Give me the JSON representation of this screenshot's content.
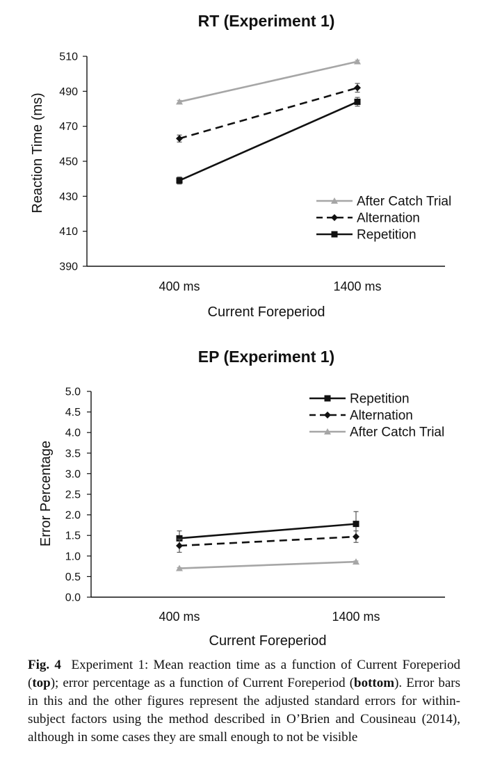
{
  "chart_data": [
    {
      "type": "line",
      "title": "RT (Experiment 1)",
      "xlabel": "Current Foreperiod",
      "ylabel": "Reaction Time (ms)",
      "categories": [
        "400 ms",
        "1400 ms"
      ],
      "ylim": [
        390,
        510
      ],
      "yticks": [
        "390",
        "410",
        "430",
        "450",
        "470",
        "490",
        "510"
      ],
      "legend_position": "bottom-right",
      "series": [
        {
          "name": "After Catch Trial",
          "values": [
            484,
            507
          ],
          "errors": [
            0.8,
            0.8
          ],
          "color": "#a6a6a6",
          "dash": "solid",
          "marker": "triangle"
        },
        {
          "name": "Alternation",
          "values": [
            463,
            492
          ],
          "errors": [
            2,
            2.5
          ],
          "color": "#111111",
          "dash": "dashed",
          "marker": "diamond"
        },
        {
          "name": "Repetition",
          "values": [
            439,
            484
          ],
          "errors": [
            2,
            2.5
          ],
          "color": "#111111",
          "dash": "solid",
          "marker": "square"
        }
      ]
    },
    {
      "type": "line",
      "title": "EP (Experiment 1)",
      "xlabel": "Current Foreperiod",
      "ylabel": "Error Percentage",
      "categories": [
        "400 ms",
        "1400 ms"
      ],
      "ylim": [
        0,
        5
      ],
      "yticks": [
        "0.0",
        "0.5",
        "1.0",
        "1.5",
        "2.0",
        "2.5",
        "3.0",
        "3.5",
        "4.0",
        "4.5",
        "5.0"
      ],
      "legend_position": "top-right",
      "series": [
        {
          "name": "Repetition",
          "values": [
            1.43,
            1.78
          ],
          "errors": [
            0.18,
            0.3
          ],
          "color": "#111111",
          "dash": "solid",
          "marker": "square"
        },
        {
          "name": "Alternation",
          "values": [
            1.25,
            1.47
          ],
          "errors": [
            0.16,
            0.14
          ],
          "color": "#111111",
          "dash": "dashed",
          "marker": "diamond"
        },
        {
          "name": "After Catch Trial",
          "values": [
            0.7,
            0.86
          ],
          "errors": [
            0.02,
            0.02
          ],
          "color": "#a6a6a6",
          "dash": "solid",
          "marker": "triangle"
        }
      ]
    }
  ],
  "caption": {
    "fig_label": "Fig. 4",
    "part1": "Experiment 1: Mean reaction time as a function of Current Foreperiod (",
    "bold_top": "top",
    "part2": "); error percentage as a function of Current Foreperiod (",
    "bold_bottom": "bottom",
    "part3": "). Error bars in this and the other figures represent the adjusted standard errors for within-subject factors using the method described in O’Brien and Cousineau (2014), although in some cases they are small enough to not be visible"
  }
}
